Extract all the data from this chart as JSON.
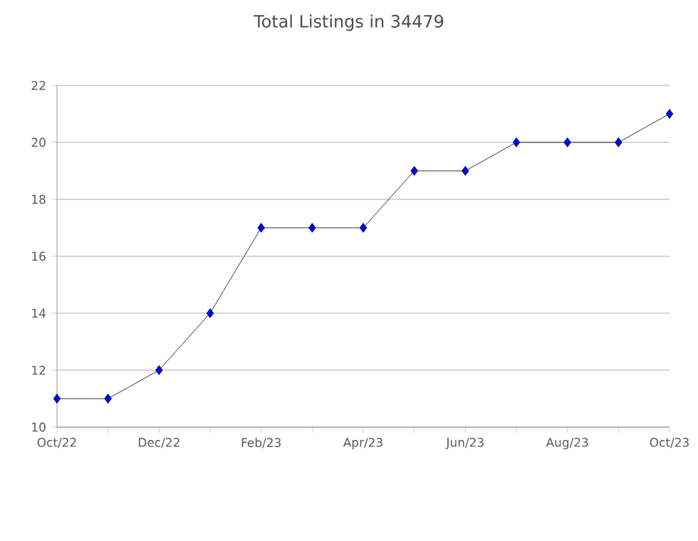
{
  "chart_data": {
    "type": "line",
    "title": "Total Listings in 34479",
    "categories": [
      "Oct/22",
      null,
      "Dec/22",
      null,
      "Feb/23",
      null,
      "Apr/23",
      null,
      "Jun/23",
      null,
      "Aug/23",
      null,
      "Oct/23"
    ],
    "series": [
      {
        "color": "#0000ff",
        "values": [
          11,
          11,
          12,
          14,
          17,
          17,
          17,
          19,
          19,
          20,
          20,
          20,
          21
        ]
      }
    ],
    "ylim": [
      10,
      22
    ],
    "yticks": [
      10,
      12,
      14,
      16,
      18,
      20,
      22
    ],
    "grid": "y",
    "marker": "diamond",
    "line_style": "solid"
  }
}
